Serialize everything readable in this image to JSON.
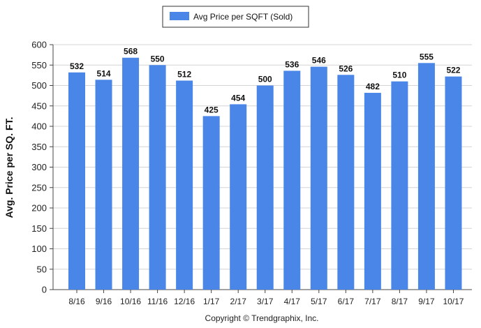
{
  "chart_data": {
    "type": "bar",
    "categories": [
      "8/16",
      "9/16",
      "10/16",
      "11/16",
      "12/16",
      "1/17",
      "2/17",
      "3/17",
      "4/17",
      "5/17",
      "6/17",
      "7/17",
      "8/17",
      "9/17",
      "10/17"
    ],
    "series": [
      {
        "name": "Avg Price per SQFT (Sold)",
        "values": [
          532,
          514,
          568,
          550,
          512,
          425,
          454,
          500,
          536,
          546,
          526,
          482,
          510,
          555,
          522
        ],
        "color": "#4a86e8"
      }
    ],
    "ylabel": "Avg. Price per SQ. FT.",
    "xlabel": "",
    "ylim": [
      0,
      600
    ],
    "yticks": [
      0,
      50,
      100,
      150,
      200,
      250,
      300,
      350,
      400,
      450,
      500,
      550,
      600
    ],
    "grid": true,
    "legend_position": "top-center",
    "data_labels": true
  },
  "footer": {
    "copyright": "Copyright © Trendgraphix, Inc."
  }
}
